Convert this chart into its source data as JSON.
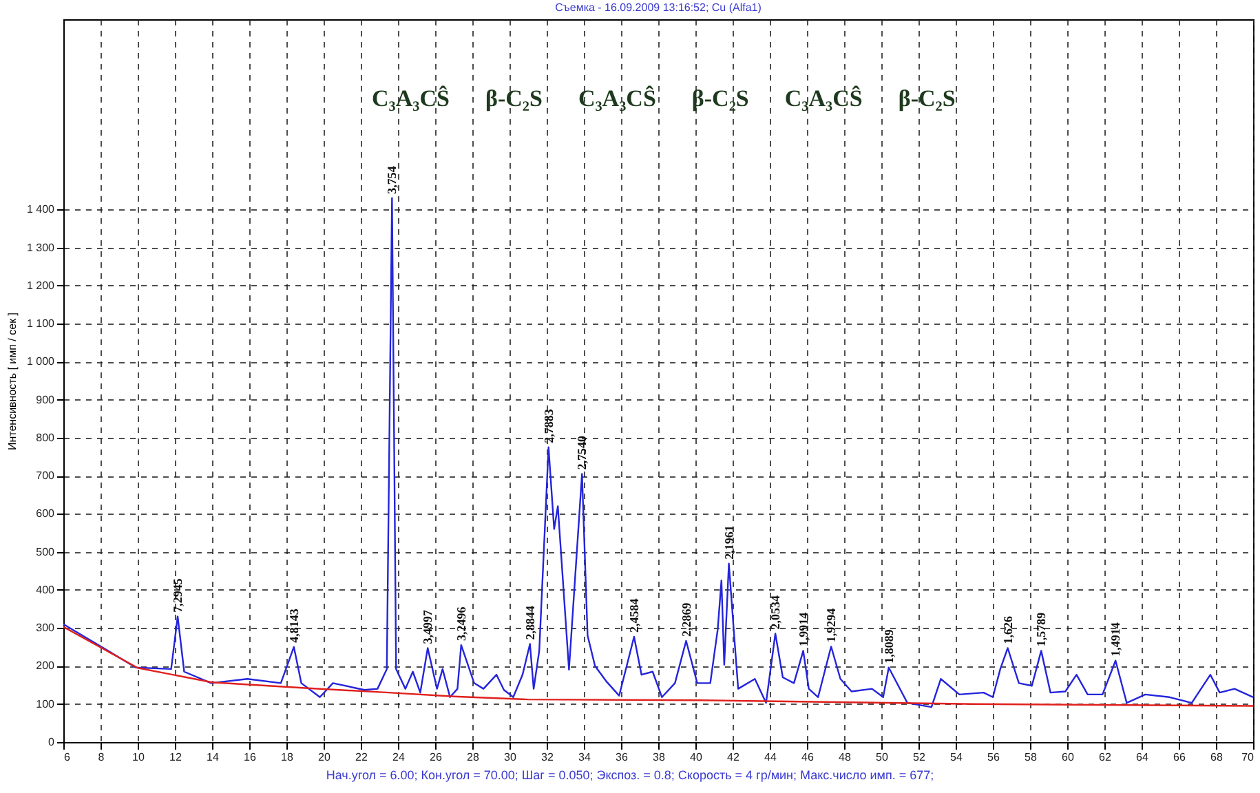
{
  "chart_data": {
    "type": "line",
    "title": "Съемка - 16.09.2009 13:16:52;  Cu (Alfa1)",
    "ylabel": "Интенсивность [ имп / сек ]",
    "xlim": [
      6,
      70
    ],
    "ylim": [
      0,
      1900
    ],
    "xticks": [
      6,
      8,
      10,
      12,
      14,
      16,
      18,
      20,
      22,
      24,
      26,
      28,
      30,
      32,
      34,
      36,
      38,
      40,
      42,
      44,
      46,
      48,
      50,
      52,
      54,
      56,
      58,
      60,
      62,
      64,
      66,
      68,
      70
    ],
    "yticks": [
      0,
      100,
      200,
      300,
      400,
      500,
      600,
      700,
      800,
      900,
      {
        "value": 1000,
        "label": "1 000"
      },
      {
        "value": 1100,
        "label": "1 100"
      },
      {
        "value": 1200,
        "label": "1 200"
      },
      {
        "value": 1300,
        "label": "1 300"
      },
      {
        "value": 1400,
        "label": "1 400"
      }
    ],
    "grid": true,
    "line_style": "solid",
    "marker": "none",
    "series": [
      {
        "color": "#2424dc",
        "x": [
          6,
          8.4,
          9.9,
          11.8,
          12.15,
          12.5,
          13.95,
          15.9,
          17.7,
          18.4,
          18.8,
          19.8,
          20.5,
          22.2,
          22.9,
          23.4,
          23.68,
          23.9,
          24.4,
          24.8,
          25.2,
          25.6,
          26.1,
          26.4,
          26.8,
          27.2,
          27.4,
          28.1,
          28.6,
          29.3,
          29.7,
          30.2,
          30.7,
          31.1,
          31.3,
          31.6,
          32.1,
          32.4,
          32.6,
          33.2,
          33.9,
          34.2,
          34.6,
          35.2,
          35.9,
          36.7,
          37.1,
          37.7,
          38.2,
          38.9,
          39.5,
          40.1,
          40.8,
          41.2,
          41.4,
          41.55,
          41.8,
          42.1,
          42.3,
          43.2,
          43.8,
          44.3,
          44.7,
          45.3,
          45.8,
          46.1,
          46.6,
          47.3,
          47.8,
          48.4,
          49.5,
          50.1,
          50.4,
          51.4,
          52.7,
          53.2,
          54.2,
          55.5,
          56,
          56.4,
          56.8,
          57.4,
          58.1,
          58.6,
          59.1,
          59.9,
          60.5,
          61.1,
          61.9,
          62.6,
          63.2,
          64.2,
          65.5,
          66.7,
          67.7,
          68.2,
          69,
          70
        ],
        "values": [
          310,
          240,
          196,
          192,
          330,
          185,
          155,
          166,
          155,
          250,
          155,
          118,
          155,
          137,
          140,
          192,
          1430,
          192,
          140,
          185,
          130,
          247,
          140,
          192,
          118,
          140,
          255,
          155,
          140,
          177,
          137,
          118,
          177,
          258,
          140,
          240,
          775,
          560,
          620,
          190,
          705,
          280,
          200,
          160,
          122,
          277,
          177,
          185,
          118,
          155,
          266,
          155,
          155,
          296,
          425,
          203,
          469,
          270,
          140,
          166,
          103,
          285,
          170,
          155,
          240,
          140,
          118,
          251,
          166,
          133,
          140,
          118,
          196,
          103,
          92,
          166,
          125,
          130,
          118,
          192,
          247,
          155,
          148,
          240,
          130,
          133,
          177,
          125,
          125,
          214,
          103,
          125,
          118,
          103,
          177,
          130,
          140,
          118
        ]
      },
      {
        "color": "#e0201c",
        "x": [
          6,
          10,
          14,
          19,
          23.5,
          27,
          31,
          40,
          55,
          70
        ],
        "values": [
          303,
          195,
          157,
          142,
          130,
          120,
          112,
          110,
          100,
          95
        ]
      }
    ],
    "annotations": [
      {
        "text": "7,2945",
        "x": 12.15,
        "y": 330
      },
      {
        "text": "4,8143",
        "x": 18.4,
        "y": 250
      },
      {
        "text": "3,754",
        "x": 23.68,
        "y": 1430
      },
      {
        "text": "3,4997",
        "x": 25.6,
        "y": 247
      },
      {
        "text": "3,2496",
        "x": 27.4,
        "y": 255
      },
      {
        "text": "2,8844",
        "x": 31.1,
        "y": 258
      },
      {
        "text": "2,7883",
        "x": 32.1,
        "y": 775
      },
      {
        "text": "2,7540",
        "x": 33.9,
        "y": 705
      },
      {
        "text": "2,4584",
        "x": 36.7,
        "y": 277
      },
      {
        "text": "2,2869",
        "x": 39.5,
        "y": 266
      },
      {
        "text": "2,1961",
        "x": 41.8,
        "y": 469
      },
      {
        "text": "2,0534",
        "x": 44.3,
        "y": 285
      },
      {
        "text": "1,9914",
        "x": 45.8,
        "y": 240
      },
      {
        "text": "1,9294",
        "x": 47.3,
        "y": 251
      },
      {
        "text": "1,8089",
        "x": 50.4,
        "y": 196
      },
      {
        "text": "1,626",
        "x": 56.8,
        "y": 247
      },
      {
        "text": "1,5789",
        "x": 58.6,
        "y": 240
      },
      {
        "text": "1,4914",
        "x": 62.6,
        "y": 214
      },
      "C₃A₃CŜ",
      "β-C₂S",
      "C₃A₃CŜ",
      "β-C₂S",
      "C₃A₃CŜ",
      "β-C₂S",
      "Нач.угол = 6.00;  Кон.угол = 70.00;  Шаг = 0.050;  Экспоз. = 0.8;  Скорость = 4 гр/мин;  Макс.число имп. = 677;"
    ]
  }
}
